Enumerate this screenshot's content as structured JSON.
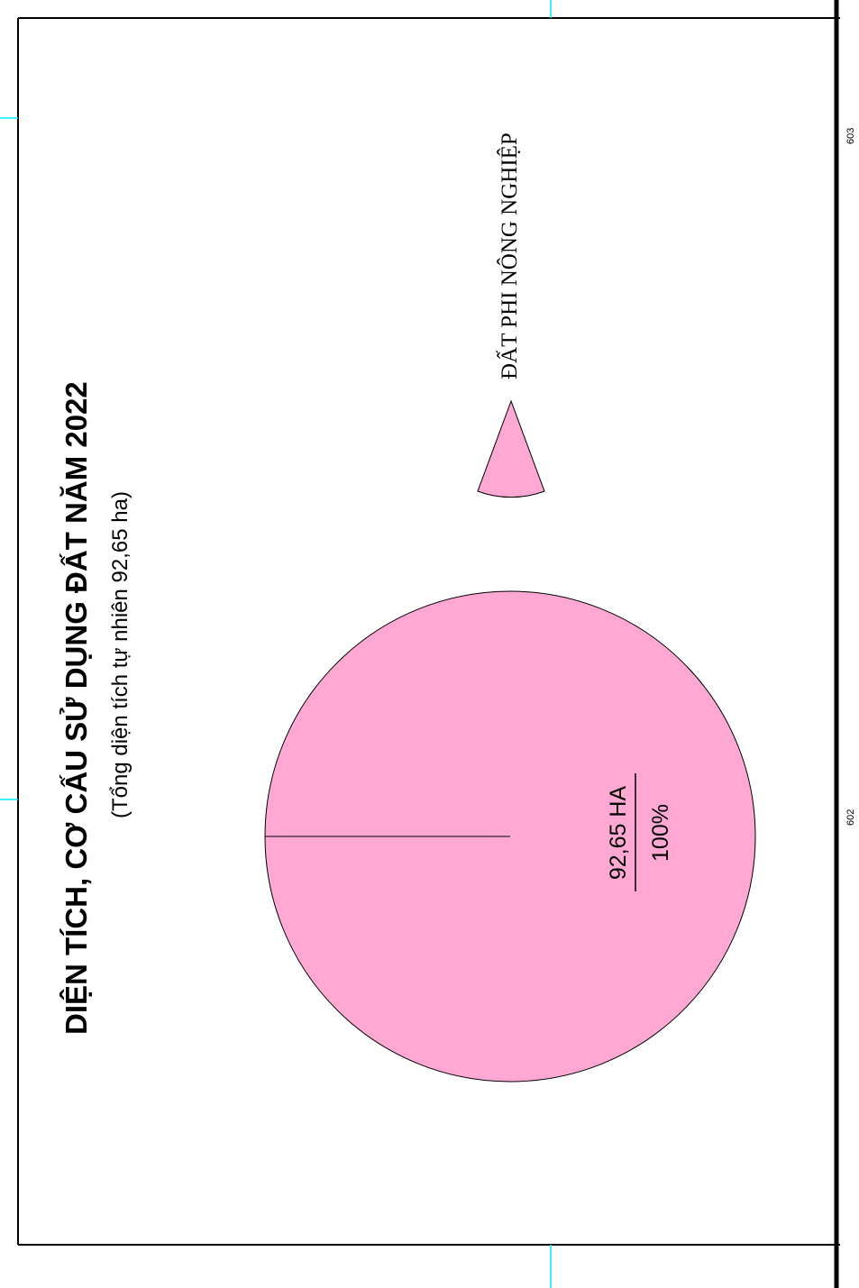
{
  "chart_data": {
    "type": "pie",
    "title": "DIỆN TÍCH, CƠ CẤU SỬ DỤNG ĐẤT NĂM 2022",
    "subtitle": "(Tổng diện tích tự nhiên 92,65 ha)",
    "total": 92.65,
    "slices": [
      {
        "name": "ĐẤT PHI NÔNG NGHIỆP",
        "value": 92.65,
        "unit": "HA",
        "percent": 100,
        "value_label": "92,65 HA",
        "percent_label": "100%",
        "color": "#ffa8d4"
      }
    ],
    "legend": {
      "placement": "top-right",
      "items": [
        {
          "label": "ĐẤT PHI NÔNG NGHIỆP",
          "color": "#ffa8d4"
        }
      ]
    }
  },
  "page_numbers": [
    "602",
    "603"
  ],
  "colors": {
    "slice": "#ffa8d4",
    "outline": "#000000",
    "registration_marks": "#00e5ff"
  }
}
